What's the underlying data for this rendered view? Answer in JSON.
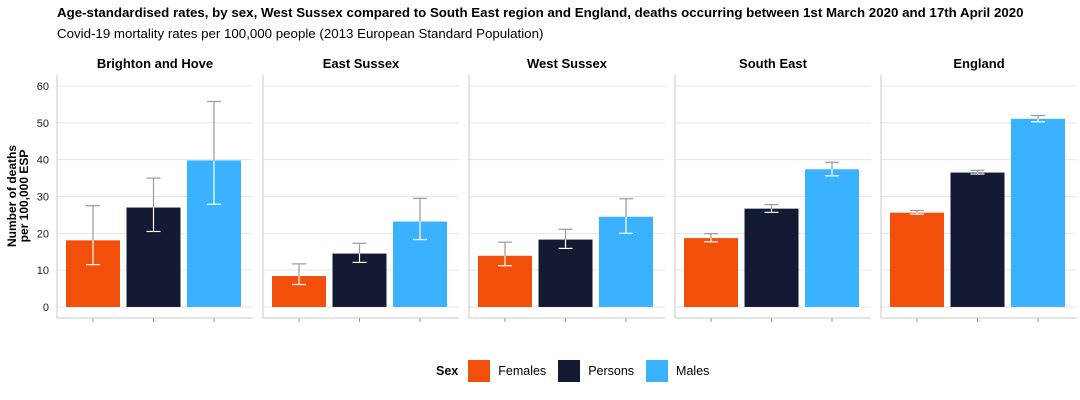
{
  "title": "Age-standardised rates, by sex, West Sussex compared to South East region and England, deaths occurring between 1st March 2020 and 17th April 2020",
  "subtitle": "Covid-19 mortality rates per 100,000 people (2013 European Standard Population)",
  "legend": {
    "title": "Sex",
    "items": [
      {
        "label": "Females",
        "color": "#f24f0a"
      },
      {
        "label": "Persons",
        "color": "#131a33"
      },
      {
        "label": "Males",
        "color": "#3bb2ff"
      }
    ]
  },
  "chart_data": {
    "type": "bar",
    "ylabel": "Number of deaths\nper 100,000 ESP",
    "xlabel": "",
    "ylim": [
      -3,
      63
    ],
    "yticks": [
      0,
      10,
      20,
      30,
      40,
      50,
      60
    ],
    "grid": true,
    "legend_position": "bottom",
    "panels": [
      "Brighton and Hove",
      "East Sussex",
      "West Sussex",
      "South East",
      "England"
    ],
    "series": [
      {
        "name": "Females",
        "color": "#f24f0a",
        "values": [
          18.1,
          8.4,
          13.9,
          18.7,
          25.6
        ],
        "lower": [
          11.5,
          6.1,
          11.2,
          17.7,
          25.2
        ],
        "upper": [
          27.5,
          11.7,
          17.6,
          19.9,
          26.2
        ]
      },
      {
        "name": "Persons",
        "color": "#131a33",
        "values": [
          27.0,
          14.5,
          18.3,
          26.7,
          36.5
        ],
        "lower": [
          20.5,
          12.1,
          15.9,
          25.7,
          36.1
        ],
        "upper": [
          35.0,
          17.3,
          21.1,
          27.8,
          37.1
        ]
      },
      {
        "name": "Males",
        "color": "#3bb2ff",
        "values": [
          39.8,
          23.2,
          24.5,
          37.4,
          51.1
        ],
        "lower": [
          27.9,
          18.3,
          20.0,
          35.6,
          50.3
        ],
        "upper": [
          55.8,
          29.5,
          29.4,
          39.3,
          52.0
        ]
      }
    ]
  }
}
